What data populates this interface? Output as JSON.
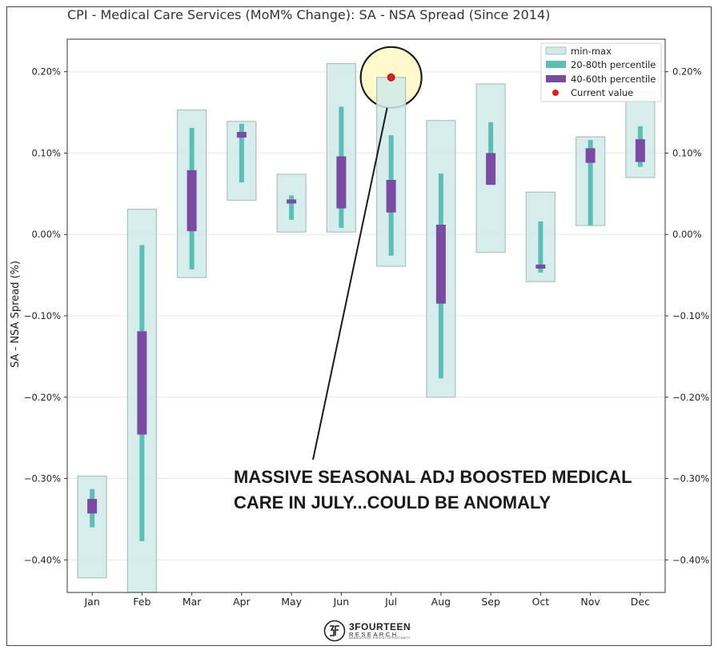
{
  "title": "CPI - Medical Care Services (MoM% Change): SA - NSA Spread (Since 2014)",
  "annotation": [
    "MASSIVE SEASONAL ADJ BOOSTED MEDICAL",
    "CARE IN JULY...COULD BE ANOMALY"
  ],
  "logo": {
    "name": "3FOURTEEN",
    "sub": "RESEARCH",
    "tagline": "MANAGE RISK. EXPLOIT OPPORTUNITY"
  },
  "colors": {
    "minmax_fill": "#cfeae9",
    "minmax_stroke": "#a9c3c2",
    "p20_80": "#5bbfb6",
    "p40_60": "#7b4ba4",
    "current": "#e02020",
    "highlight": "#fff9cc"
  },
  "chart_data": {
    "type": "range",
    "title": "CPI - Medical Care Services (MoM% Change): SA - NSA Spread (Since 2014)",
    "xlabel": "",
    "ylabel": "SA - NSA Spread (%)",
    "ylim": [
      -0.44,
      0.24
    ],
    "yticks": [
      0.2,
      0.1,
      0.0,
      -0.1,
      -0.2,
      -0.3,
      -0.4
    ],
    "ytick_labels": [
      "0.20%",
      "0.10%",
      "0.00%",
      "−0.10%",
      "−0.20%",
      "−0.30%",
      "−0.40%"
    ],
    "categories": [
      "Jan",
      "Feb",
      "Mar",
      "Apr",
      "May",
      "Jun",
      "Jul",
      "Aug",
      "Sep",
      "Oct",
      "Nov",
      "Dec"
    ],
    "min": [
      -0.422,
      -0.445,
      -0.053,
      0.042,
      0.003,
      0.003,
      -0.039,
      -0.2,
      -0.022,
      -0.058,
      0.011,
      0.07
    ],
    "max": [
      -0.297,
      0.031,
      0.153,
      0.139,
      0.074,
      0.21,
      0.193,
      0.14,
      0.185,
      0.052,
      0.12,
      0.175
    ],
    "p20": [
      -0.36,
      -0.377,
      -0.043,
      0.064,
      0.018,
      0.008,
      -0.026,
      -0.177,
      0.061,
      -0.047,
      0.011,
      0.083
    ],
    "p80": [
      -0.313,
      -0.013,
      0.131,
      0.136,
      0.048,
      0.157,
      0.122,
      0.075,
      0.138,
      0.016,
      0.116,
      0.133
    ],
    "p40": [
      -0.343,
      -0.246,
      0.004,
      0.119,
      0.038,
      0.032,
      0.027,
      -0.085,
      0.061,
      -0.042,
      0.088,
      0.089
    ],
    "p60": [
      -0.325,
      -0.119,
      0.079,
      0.126,
      0.043,
      0.096,
      0.067,
      0.012,
      0.1,
      -0.037,
      0.106,
      0.117
    ],
    "current": {
      "category": "Jul",
      "value": 0.193
    },
    "legend": {
      "position": "top-right",
      "items": [
        "min-max",
        "20-80th percentile",
        "40-60th percentile",
        "Current value"
      ]
    }
  }
}
